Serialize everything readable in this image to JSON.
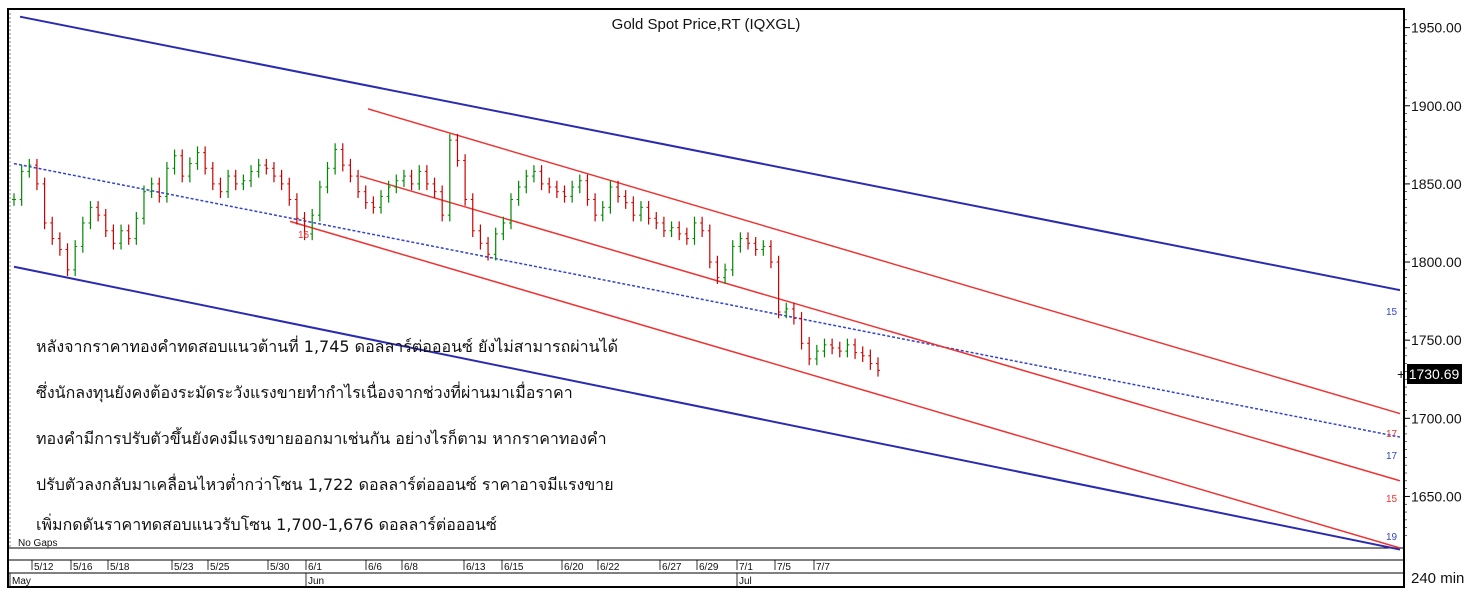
{
  "chart_data": {
    "type": "line",
    "title": "Gold Spot Price,RT (IQXGL)",
    "interval_label": "240 min",
    "last_price_label": "1730.69",
    "no_gaps_label": "No Gaps",
    "ylim": [
      1617,
      1960
    ],
    "y_ticks": [
      "1950.00",
      "1900.00",
      "1850.00",
      "1800.00",
      "1750.00",
      "1700.00",
      "1650.00"
    ],
    "x_date_labels": [
      "5/12",
      "5/16",
      "5/18",
      "5/23",
      "5/25",
      "5/30",
      "6/1",
      "6/6",
      "6/8",
      "6/13",
      "6/15",
      "6/20",
      "6/22",
      "6/27",
      "6/29",
      "7/1",
      "7/5",
      "7/7"
    ],
    "x_month_labels": [
      "May",
      "Jun",
      "Jul"
    ],
    "series": [
      {
        "color": "#008800",
        "values": [
          1840,
          1858,
          1862,
          1850,
          1825,
          1815,
          1808,
          1795,
          1810,
          1825,
          1835,
          1830,
          1820,
          1812,
          1820,
          1815,
          1828,
          1845,
          1850,
          1842,
          1860,
          1868,
          1855,
          1863,
          1870,
          1860,
          1850,
          1845,
          1855,
          1850,
          1852,
          1858,
          1862,
          1860,
          1855,
          1850,
          1840,
          1828,
          1818,
          1830,
          1848,
          1860,
          1872,
          1862,
          1855,
          1845,
          1838,
          1835,
          1842,
          1848,
          1852,
          1855,
          1850,
          1858,
          1850,
          1845,
          1830,
          1878,
          1865,
          1840,
          1820,
          1812,
          1805,
          1818,
          1825,
          1840,
          1848,
          1855,
          1858,
          1850,
          1848,
          1845,
          1842,
          1848,
          1852,
          1840,
          1830,
          1835,
          1848,
          1842,
          1838,
          1830,
          1835,
          1828,
          1825,
          1820,
          1822,
          1818,
          1815,
          1825,
          1820,
          1800,
          1790,
          1795,
          1810,
          1815,
          1812,
          1808,
          1810,
          1800,
          1768,
          1770,
          1764,
          1748,
          1738,
          1743,
          1747,
          1745,
          1743,
          1747,
          1742,
          1740,
          1735,
          1730.69
        ]
      }
    ],
    "annotations": [
      {
        "text": "16"
      },
      {
        "text": "15"
      },
      {
        "text": "17"
      },
      {
        "text": "17"
      },
      {
        "text": "15"
      },
      {
        "text": "19"
      }
    ],
    "grid": false,
    "legend": "none"
  },
  "commentary": {
    "lines": [
      "หลังจากราคาทองคำทดสอบแนวต้านที่ 1,745 ดอลลาร์ต่อออนซ์ ยังไม่สามารถผ่านได้",
      "ซึ่งนักลงทุนยังคงต้องระมัดระวังแรงขายทำกำไรเนื่องจากช่วงที่ผ่านมาเมื่อราคา",
      "ทองคำมีการปรับตัวขึ้นยังคงมีแรงขายออกมาเช่นกัน อย่างไรก็ตาม หากราคาทองคำ",
      "ปรับตัวลงกลับมาเคลื่อนไหวต่ำกว่าโซน 1,722 ดอลลาร์ต่อออนซ์ ราคาอาจมีแรงขาย",
      "เพิ่มกดดันราคาทดสอบแนวรับโซน 1,700-1,676 ดอลลาร์ต่อออนซ์"
    ]
  },
  "colors": {
    "price": "#008800",
    "price_down": "#cc0000",
    "channel_outer": "#2b2bb0",
    "channel_inner": "#ee3333",
    "midline": "#3344cc",
    "border": "#000000"
  }
}
